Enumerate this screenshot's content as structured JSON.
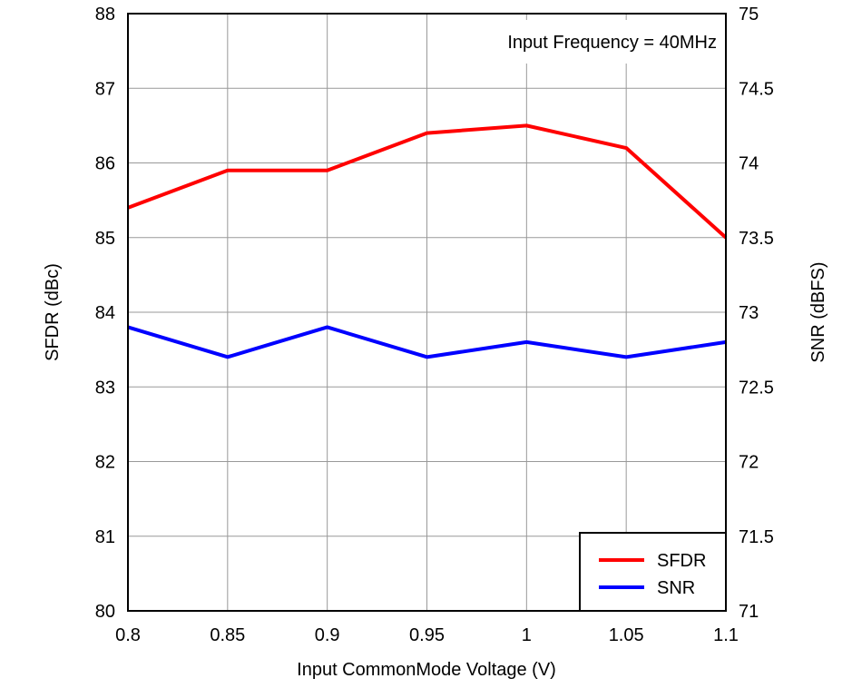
{
  "chart_data": {
    "type": "line",
    "annotation": "Input Frequency = 40MHz",
    "xlabel": "Input CommonMode Voltage (V)",
    "ylabel": "SFDR (dBc)",
    "y2label": "SNR (dBFS)",
    "x": [
      0.8,
      0.85,
      0.9,
      0.95,
      1,
      1.05,
      1.1
    ],
    "x_tick_labels": [
      "0.8",
      "0.85",
      "0.9",
      "0.95",
      "1",
      "1.05",
      "1.1"
    ],
    "xlim": [
      0.8,
      1.1
    ],
    "ylim": [
      80,
      88
    ],
    "y_tick_labels": [
      "80",
      "81",
      "82",
      "83",
      "84",
      "85",
      "86",
      "87",
      "88"
    ],
    "y2lim": [
      71,
      75
    ],
    "y2_tick_labels": [
      "71",
      "71.5",
      "72",
      "72.5",
      "73",
      "73.5",
      "74",
      "74.5",
      "75"
    ],
    "grid": true,
    "legend_position": "bottom-right",
    "series": [
      {
        "name": "SFDR",
        "axis": "left",
        "color": "#ff0000",
        "values": [
          85.4,
          85.9,
          85.9,
          86.4,
          86.5,
          86.2,
          85.0
        ]
      },
      {
        "name": "SNR",
        "axis": "right",
        "color": "#0000ff",
        "values": [
          72.9,
          72.7,
          72.9,
          72.7,
          72.8,
          72.7,
          72.8
        ]
      }
    ]
  }
}
